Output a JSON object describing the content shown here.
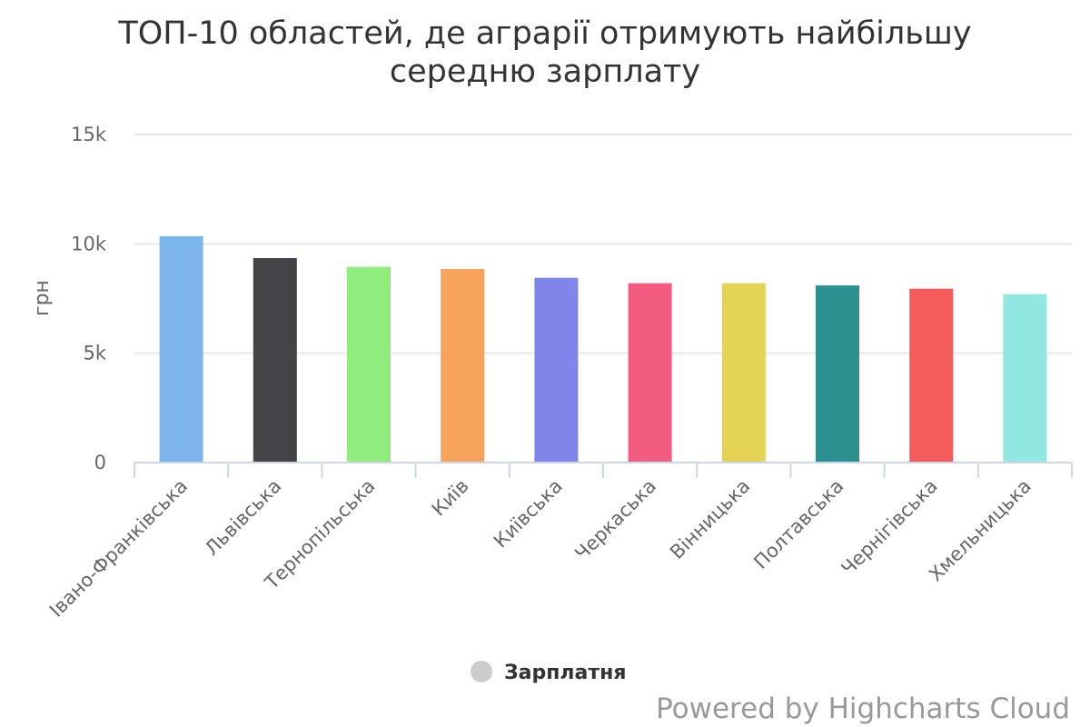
{
  "chart_data": {
    "type": "bar",
    "title_lines": [
      "ТОП-10 областей, де аграрії отримують найбільшу",
      "середню зарплату"
    ],
    "ylabel": "грн",
    "xlabel": "",
    "ylim": [
      0,
      15000
    ],
    "y_ticks": [
      0,
      5000,
      10000,
      15000
    ],
    "y_tick_labels": [
      "0",
      "5k",
      "10k",
      "15k"
    ],
    "grid": true,
    "legend_position": "bottom-center",
    "categories": [
      "Івано-Франківська",
      "Львівська",
      "Тернопільська",
      "Київ",
      "Київська",
      "Черкаська",
      "Вінницька",
      "Полтавська",
      "Чернігівська",
      "Хмельницька"
    ],
    "series": [
      {
        "name": "Зарплатня",
        "values": [
          10350,
          9350,
          8950,
          8850,
          8450,
          8200,
          8200,
          8100,
          7950,
          7700
        ]
      }
    ],
    "bar_colors": [
      "#7cb5ec",
      "#434348",
      "#90ed7d",
      "#f7a35c",
      "#8085e9",
      "#f15c80",
      "#e4d354",
      "#2b908f",
      "#f45b5b",
      "#91e8e1"
    ],
    "legend_symbol_color": "#cccccc"
  },
  "credits": "Powered by Highcharts Cloud"
}
